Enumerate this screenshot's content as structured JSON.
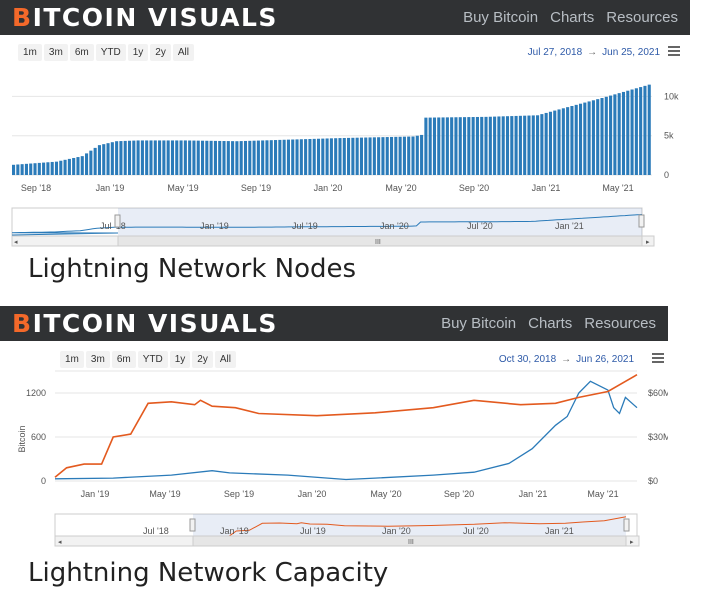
{
  "brand": {
    "first": "B",
    "rest": "ITCOIN VISUALS"
  },
  "nav": [
    "Buy Bitcoin",
    "Charts",
    "Resources"
  ],
  "range_buttons": [
    "1m",
    "3m",
    "6m",
    "YTD",
    "1y",
    "2y",
    "All"
  ],
  "scroll_label": "III",
  "colors": {
    "header": "#303234",
    "accent": "#f4692a",
    "bar": "#2b7bb9",
    "btc_line": "#e35a1f",
    "usd_line": "#2b7bb9"
  },
  "chart_data": [
    {
      "type": "bar",
      "title": "Lightning Network Nodes",
      "date_range": {
        "from": "Jul 27, 2018",
        "to": "Jun 25, 2021"
      },
      "x_ticks": [
        "Sep '18",
        "Jan '19",
        "May '19",
        "Sep '19",
        "Jan '20",
        "May '20",
        "Sep '20",
        "Jan '21",
        "May '21"
      ],
      "y_ticks": [
        "10k",
        "5k",
        "0"
      ],
      "navigator_ticks": [
        "Jul '18",
        "Jan '19",
        "Jul '19",
        "Jan '20",
        "Jul '20",
        "Jan '21"
      ],
      "ylim": [
        0,
        14000
      ],
      "series": [
        {
          "keypoints": [
            [
              0,
              1300
            ],
            [
              10,
              1700
            ],
            [
              16,
              2400
            ],
            [
              20,
              3800
            ],
            [
              24,
              4300
            ],
            [
              29,
              4400
            ],
            [
              40,
              4400
            ],
            [
              52,
              4300
            ],
            [
              64,
              4500
            ],
            [
              76,
              4700
            ],
            [
              93,
              4900
            ],
            [
              95,
              5100
            ],
            [
              96,
              7300
            ],
            [
              110,
              7400
            ],
            [
              122,
              7600
            ],
            [
              126,
              8200
            ],
            [
              137,
              9800
            ],
            [
              148,
              11500
            ]
          ],
          "count": 149
        }
      ]
    },
    {
      "type": "line",
      "title": "Lightning Network Capacity",
      "date_range": {
        "from": "Oct 30, 2018",
        "to": "Jun 26, 2021"
      },
      "x_ticks": [
        "Jan '19",
        "May '19",
        "Sep '19",
        "Jan '20",
        "May '20",
        "Sep '20",
        "Jan '21",
        "May '21"
      ],
      "y_left_ticks": [
        "1200",
        "600",
        "0"
      ],
      "y_right_ticks": [
        "$60M",
        "$30M",
        "$0"
      ],
      "ylabel": "Bitcoin",
      "navigator_ticks": [
        "Jul '18",
        "Jan '19",
        "Jul '19",
        "Jan '20",
        "Jul '20",
        "Jan '21"
      ],
      "series": [
        {
          "axis": "btc",
          "points": [
            [
              0,
              50
            ],
            [
              0.02,
              180
            ],
            [
              0.05,
              230
            ],
            [
              0.08,
              230
            ],
            [
              0.1,
              600
            ],
            [
              0.13,
              640
            ],
            [
              0.16,
              1060
            ],
            [
              0.2,
              1080
            ],
            [
              0.24,
              1040
            ],
            [
              0.25,
              1100
            ],
            [
              0.27,
              1020
            ],
            [
              0.31,
              1000
            ],
            [
              0.35,
              920
            ],
            [
              0.45,
              890
            ],
            [
              0.55,
              930
            ],
            [
              0.65,
              1000
            ],
            [
              0.72,
              1100
            ],
            [
              0.8,
              1040
            ],
            [
              0.86,
              1060
            ],
            [
              0.9,
              1140
            ],
            [
              0.95,
              1220
            ],
            [
              1.0,
              1450
            ]
          ]
        },
        {
          "axis": "usd",
          "points": [
            [
              0,
              1.5
            ],
            [
              0.1,
              2
            ],
            [
              0.2,
              4
            ],
            [
              0.27,
              7
            ],
            [
              0.3,
              5.5
            ],
            [
              0.4,
              4
            ],
            [
              0.5,
              1
            ],
            [
              0.55,
              2
            ],
            [
              0.65,
              4
            ],
            [
              0.72,
              6
            ],
            [
              0.78,
              12
            ],
            [
              0.82,
              22
            ],
            [
              0.86,
              38
            ],
            [
              0.88,
              44
            ],
            [
              0.9,
              60
            ],
            [
              0.92,
              68
            ],
            [
              0.95,
              62
            ],
            [
              0.96,
              50
            ],
            [
              0.97,
              46
            ],
            [
              0.98,
              57
            ],
            [
              1.0,
              50
            ]
          ]
        }
      ]
    }
  ]
}
